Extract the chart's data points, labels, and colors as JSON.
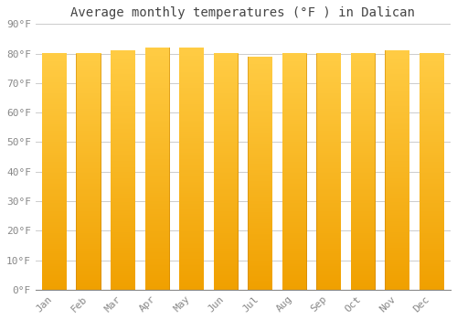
{
  "title": "Average monthly temperatures (°F ) in Dalican",
  "months": [
    "Jan",
    "Feb",
    "Mar",
    "Apr",
    "May",
    "Jun",
    "Jul",
    "Aug",
    "Sep",
    "Oct",
    "Nov",
    "Dec"
  ],
  "values": [
    80,
    80,
    81,
    82,
    82,
    80,
    79,
    80,
    80,
    80,
    81,
    80
  ],
  "ylim": [
    0,
    90
  ],
  "yticks": [
    0,
    10,
    20,
    30,
    40,
    50,
    60,
    70,
    80,
    90
  ],
  "ytick_labels": [
    "0°F",
    "10°F",
    "20°F",
    "30°F",
    "40°F",
    "50°F",
    "60°F",
    "70°F",
    "80°F",
    "90°F"
  ],
  "bar_color_top": "#FFCC44",
  "bar_color_bottom": "#F0A000",
  "bar_edge_color": "#C88000",
  "background_color": "#FFFFFF",
  "grid_color": "#CCCCCC",
  "title_fontsize": 10,
  "tick_fontsize": 8,
  "font_color": "#888888",
  "bar_width": 0.72
}
